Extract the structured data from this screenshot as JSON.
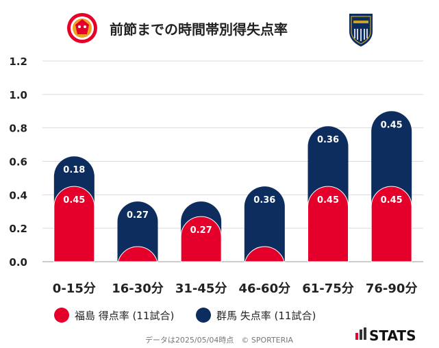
{
  "title": "前節までの時間帯別得失点率",
  "colors": {
    "home": "#e5002b",
    "away": "#0d2d5e",
    "grid": "#d9d9d9",
    "axis": "#bbbbbb"
  },
  "legend": {
    "home_label": "福島 得点率 (11試合)",
    "away_label": "群馬 失点率 (11試合)"
  },
  "footer": {
    "note": "データは2025/05/04時点　© SPORTERIA",
    "brand": "STATS"
  },
  "chart_data": {
    "type": "bar",
    "stacked": true,
    "title": "前節までの時間帯別得失点率",
    "xlabel": "",
    "ylabel": "",
    "categories": [
      "0-15分",
      "16-30分",
      "31-45分",
      "46-60分",
      "61-75分",
      "76-90分"
    ],
    "series": [
      {
        "name": "福島 得点率 (11試合)",
        "values": [
          0.45,
          0.09,
          0.27,
          0.09,
          0.45,
          0.45
        ],
        "labels": [
          "0.45",
          "",
          "0.27",
          "",
          "0.45",
          "0.45"
        ]
      },
      {
        "name": "群馬 失点率 (11試合)",
        "values": [
          0.18,
          0.27,
          0.09,
          0.36,
          0.36,
          0.45
        ],
        "labels": [
          "0.18",
          "0.27",
          "",
          "0.36",
          "0.36",
          "0.45"
        ]
      }
    ],
    "ylim": [
      0,
      1.2
    ],
    "yticks": [
      "0.0",
      "0.2",
      "0.4",
      "0.6",
      "0.8",
      "1.0",
      "1.2"
    ],
    "grid": true,
    "legend_position": "bottom"
  }
}
